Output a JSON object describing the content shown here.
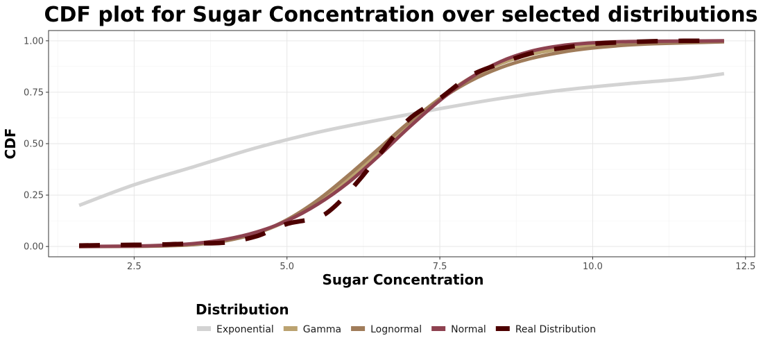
{
  "chart_data": {
    "type": "line",
    "title": "CDF plot for Sugar Concentration over selected distributions",
    "xlabel": "Sugar Concentration",
    "ylabel": "CDF",
    "xlim": [
      1.1,
      12.65
    ],
    "ylim": [
      -0.05,
      1.05
    ],
    "x_ticks": [
      2.5,
      5.0,
      7.5,
      10.0,
      12.5
    ],
    "x_tick_labels": [
      "2.5",
      "5.0",
      "7.5",
      "10.0",
      "12.5"
    ],
    "y_ticks": [
      0.0,
      0.25,
      0.5,
      0.75,
      1.0
    ],
    "y_tick_labels": [
      "0.00",
      "0.25",
      "0.50",
      "0.75",
      "1.00"
    ],
    "grid": true,
    "legend_title": "Distribution",
    "legend_position": "bottom",
    "series": [
      {
        "name": "Exponential",
        "color": "#d3d3d3",
        "style": "solid",
        "x": [
          1.6,
          2.5,
          3.5,
          4.5,
          5.5,
          6.5,
          7.5,
          8.5,
          9.5,
          10.5,
          11.5,
          12.15
        ],
        "values": [
          0.2,
          0.3,
          0.39,
          0.48,
          0.555,
          0.615,
          0.67,
          0.72,
          0.76,
          0.79,
          0.815,
          0.84
        ]
      },
      {
        "name": "Gamma",
        "color": "#bba270",
        "style": "solid",
        "x": [
          1.6,
          2.5,
          3.0,
          3.5,
          4.0,
          4.5,
          5.0,
          5.5,
          6.0,
          6.5,
          7.0,
          7.5,
          8.0,
          8.5,
          9.0,
          9.5,
          10.0,
          10.5,
          11.0,
          12.15
        ],
        "values": [
          0.0,
          0.001,
          0.004,
          0.012,
          0.03,
          0.065,
          0.125,
          0.215,
          0.33,
          0.46,
          0.6,
          0.72,
          0.82,
          0.89,
          0.935,
          0.962,
          0.978,
          0.988,
          0.993,
          0.998
        ]
      },
      {
        "name": "Lognormal",
        "color": "#a07c5a",
        "style": "solid",
        "x": [
          1.6,
          2.5,
          3.0,
          3.5,
          4.0,
          4.5,
          5.0,
          5.5,
          6.0,
          6.5,
          7.0,
          7.5,
          8.0,
          8.5,
          9.0,
          9.5,
          10.0,
          10.5,
          11.0,
          12.15
        ],
        "values": [
          0.0,
          0.001,
          0.003,
          0.01,
          0.028,
          0.065,
          0.13,
          0.225,
          0.345,
          0.475,
          0.605,
          0.715,
          0.805,
          0.87,
          0.915,
          0.945,
          0.965,
          0.978,
          0.986,
          0.995
        ]
      },
      {
        "name": "Normal",
        "color": "#8e4250",
        "style": "solid",
        "x": [
          1.6,
          2.5,
          3.0,
          3.5,
          4.0,
          4.5,
          5.0,
          5.5,
          6.0,
          6.5,
          7.0,
          7.5,
          8.0,
          8.5,
          9.0,
          9.5,
          10.0,
          10.5,
          11.0,
          12.15
        ],
        "values": [
          0.0,
          0.002,
          0.006,
          0.015,
          0.035,
          0.07,
          0.125,
          0.205,
          0.31,
          0.44,
          0.58,
          0.71,
          0.82,
          0.9,
          0.95,
          0.977,
          0.99,
          0.996,
          0.998,
          1.0
        ]
      },
      {
        "name": "Real Distribution",
        "color": "#4d0000",
        "style": "dashed",
        "x": [
          1.6,
          2.5,
          3.0,
          3.5,
          4.0,
          4.5,
          5.0,
          5.5,
          5.8,
          6.2,
          6.6,
          7.0,
          7.5,
          8.0,
          8.5,
          9.0,
          9.5,
          10.0,
          10.5,
          11.0,
          11.5,
          12.0
        ],
        "values": [
          0.005,
          0.008,
          0.01,
          0.015,
          0.02,
          0.05,
          0.11,
          0.14,
          0.2,
          0.33,
          0.48,
          0.62,
          0.72,
          0.83,
          0.89,
          0.94,
          0.965,
          0.985,
          0.993,
          0.998,
          1.0,
          1.0
        ]
      }
    ]
  }
}
